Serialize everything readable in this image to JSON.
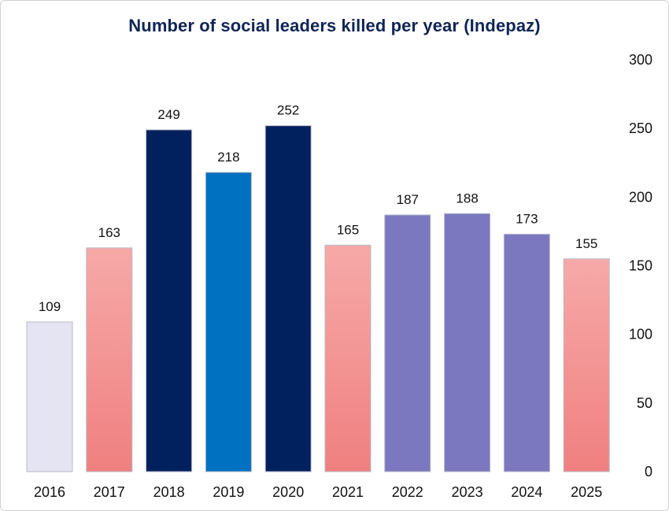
{
  "chart_data": {
    "type": "bar",
    "title": "Number of social leaders killed per year (Indepaz)",
    "xlabel": "",
    "ylabel": "",
    "ylim": [
      0,
      300
    ],
    "yticks": [
      0,
      50,
      100,
      150,
      200,
      250,
      300
    ],
    "y_axis_side": "right",
    "grid": false,
    "categories": [
      "2016",
      "2017",
      "2018",
      "2019",
      "2020",
      "2021",
      "2022",
      "2023",
      "2024",
      "2025"
    ],
    "values": [
      109,
      163,
      249,
      218,
      252,
      165,
      187,
      188,
      173,
      155
    ],
    "bar_styles": [
      "lavender",
      "pink",
      "navy",
      "blue",
      "navy",
      "pink",
      "purple",
      "purple",
      "purple",
      "pink"
    ]
  },
  "colors": {
    "title": "#0f2557",
    "lavender": "#e4e4f2",
    "pink_top": "#f6a9a8",
    "pink_bottom": "#f08080",
    "navy": "#01215e",
    "blue": "#0070c0",
    "purple": "#7b78c0",
    "bar_border": "#b8b8c8"
  }
}
